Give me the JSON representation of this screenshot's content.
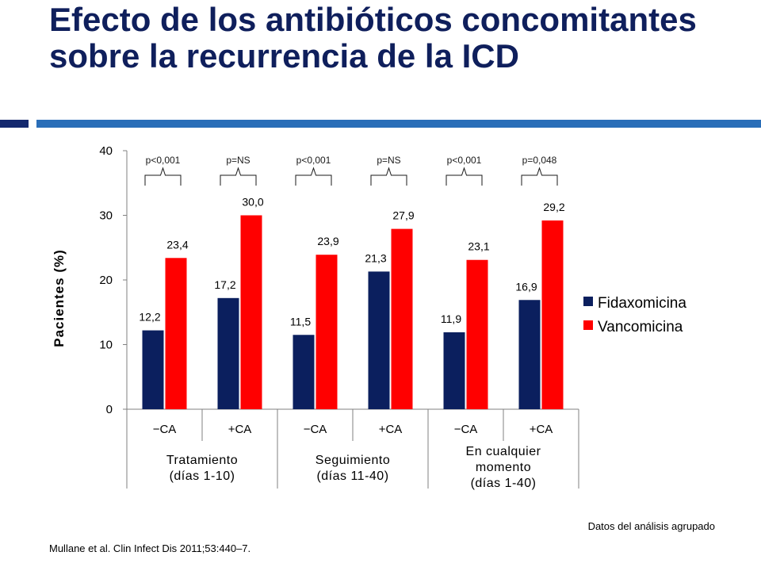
{
  "title": "Efecto de los antibióticos concomitantes sobre la recurrencia de la ICD",
  "colors": {
    "title": "#0f1f5c",
    "accent_dark": "#14286e",
    "accent_light": "#2a6eb8",
    "fidaxomicina": "#0b1f5e",
    "vancomicina": "#ff0000"
  },
  "chart_data": {
    "type": "bar",
    "ylabel": "Pacientes (%)",
    "ylim": [
      0,
      40
    ],
    "yticks": [
      "0",
      "10",
      "20",
      "30",
      "40"
    ],
    "categories": [
      "−CA",
      "+CA",
      "−CA",
      "+CA",
      "−CA",
      "+CA"
    ],
    "groups": [
      {
        "label": [
          "Tratamiento",
          "(días 1-10)"
        ]
      },
      {
        "label": [
          "Seguimiento",
          "(días 11-40)"
        ]
      },
      {
        "label": [
          "En cualquier",
          "momento",
          "(días 1-40)"
        ]
      }
    ],
    "series": [
      {
        "name": "Fidaxomicina",
        "values": [
          12.2,
          17.2,
          11.5,
          21.3,
          11.9,
          16.9
        ],
        "labels": [
          "12,2",
          "17,2",
          "11,5",
          "21,3",
          "11,9",
          "16,9"
        ]
      },
      {
        "name": "Vancomicina",
        "values": [
          23.4,
          30.0,
          23.9,
          27.9,
          23.1,
          29.2
        ],
        "labels": [
          "23,4",
          "30,0",
          "23,9",
          "27,9",
          "23,1",
          "29,2"
        ]
      }
    ],
    "pvalues": [
      "p<0,001",
      "p=NS",
      "p<0,001",
      "p=NS",
      "p<0,001",
      "p=0,048"
    ],
    "legend": [
      "Fidaxomicina",
      "Vancomicina"
    ],
    "legend_position": "right"
  },
  "footer": {
    "note": "Datos del análisis agrupado",
    "source": "Mullane et al. Clin Infect Dis 2011;53:440–7."
  }
}
